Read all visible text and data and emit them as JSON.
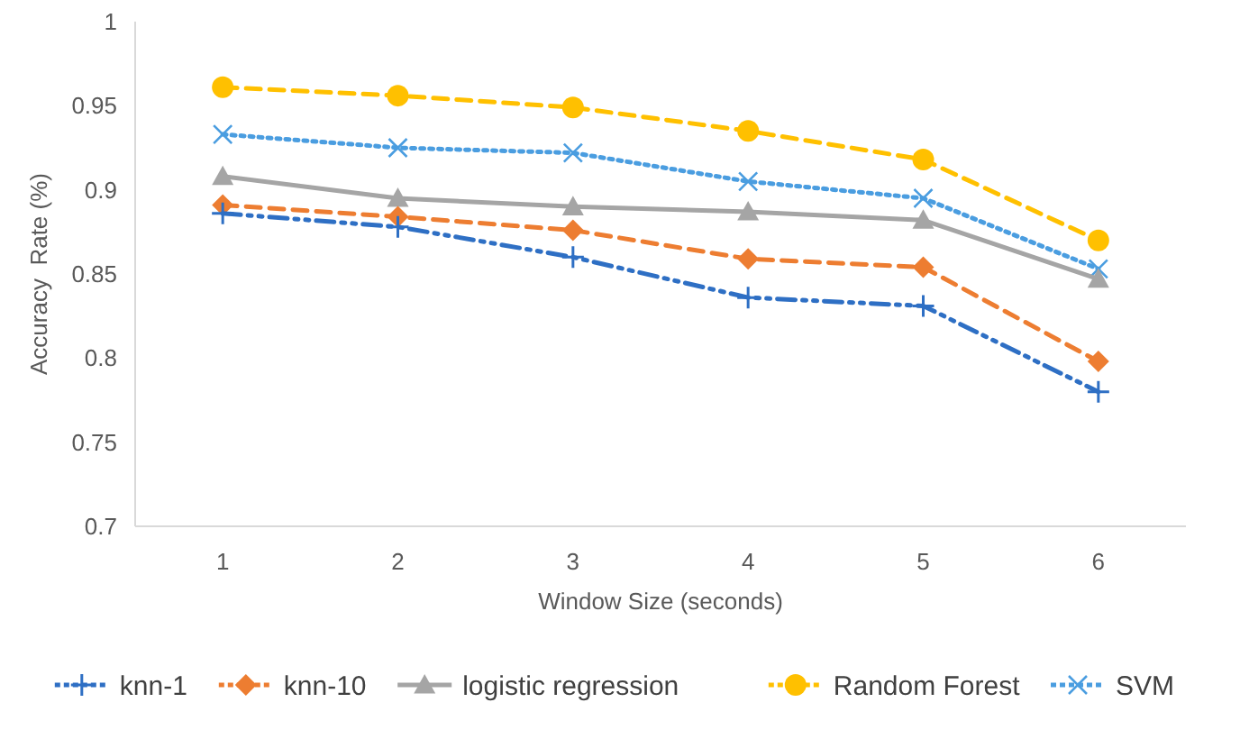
{
  "chart_data": {
    "type": "line",
    "xlabel": "Window Size (seconds)",
    "ylabel": "Accuracy  Rate (%)",
    "categories": [
      "1",
      "2",
      "3",
      "4",
      "5",
      "6"
    ],
    "ylim": [
      0.7,
      1
    ],
    "yticks": [
      0.7,
      0.75,
      0.8,
      0.85,
      0.9,
      0.95,
      1
    ],
    "grid": false,
    "legend": "bottom",
    "series": [
      {
        "name": "knn-1",
        "color": "#2e6fc4",
        "marker": "cross",
        "line_style": "dashdot",
        "values": [
          0.886,
          0.878,
          0.86,
          0.836,
          0.831,
          0.78
        ]
      },
      {
        "name": "knn-10",
        "color": "#ed7d31",
        "marker": "diamond",
        "line_style": "dashed",
        "values": [
          0.891,
          0.884,
          0.876,
          0.859,
          0.854,
          0.798
        ]
      },
      {
        "name": "logistic regression",
        "color": "#a5a5a5",
        "marker": "triangle",
        "line_style": "solid",
        "values": [
          0.908,
          0.895,
          0.89,
          0.887,
          0.882,
          0.847
        ]
      },
      {
        "name": "Random Forest",
        "color": "#ffc000",
        "marker": "circle",
        "line_style": "dashed",
        "values": [
          0.961,
          0.956,
          0.949,
          0.935,
          0.918,
          0.87
        ]
      },
      {
        "name": "SVM",
        "color": "#4a9de0",
        "marker": "x",
        "line_style": "dotted",
        "values": [
          0.933,
          0.925,
          0.922,
          0.905,
          0.895,
          0.853
        ]
      }
    ]
  }
}
